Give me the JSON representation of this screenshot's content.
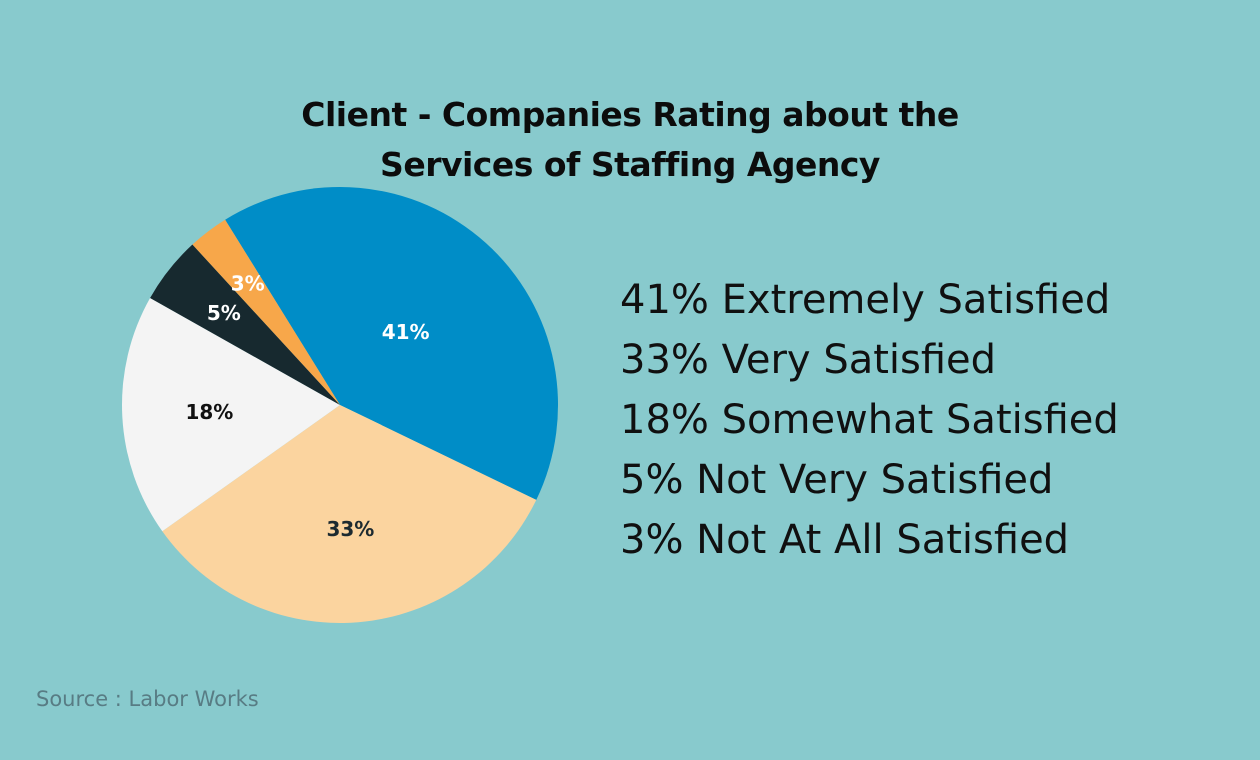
{
  "chart_data": {
    "type": "pie",
    "title_lines": [
      "Client - Companies Rating about the",
      "Services of Staffing Agency"
    ],
    "slices": [
      {
        "label": "Extremely Satisfied",
        "value": 41,
        "display": "41%",
        "color": "#008dc7",
        "label_color": "#ffffff"
      },
      {
        "label": "Very Satisfied",
        "value": 33,
        "display": "33%",
        "color": "#fbd49f",
        "label_color": "#1c2a30"
      },
      {
        "label": "Somewhat Satisfied",
        "value": 18,
        "display": "18%",
        "color": "#f4f4f4",
        "label_color": "#111111"
      },
      {
        "label": "Not Very Satisfied",
        "value": 5,
        "display": "5%",
        "color": "#17292f",
        "label_color": "#ffffff"
      },
      {
        "label": "Not At All Satisfied",
        "value": 3,
        "display": "3%",
        "color": "#f7a74a",
        "label_color": "#ffffff"
      }
    ],
    "legend": [
      "41% Extremely Satisfied",
      "33% Very Satisfied",
      "18% Somewhat Satisfied",
      "5% Not Very Satisfied",
      "3% Not At All Satisfied"
    ],
    "legend_placement": "right"
  },
  "source": "Source : Labor Works",
  "colors": {
    "background": "#88cacd",
    "title": "#0c0c0c",
    "legend_text": "#101010",
    "source_text": "#587c84"
  }
}
